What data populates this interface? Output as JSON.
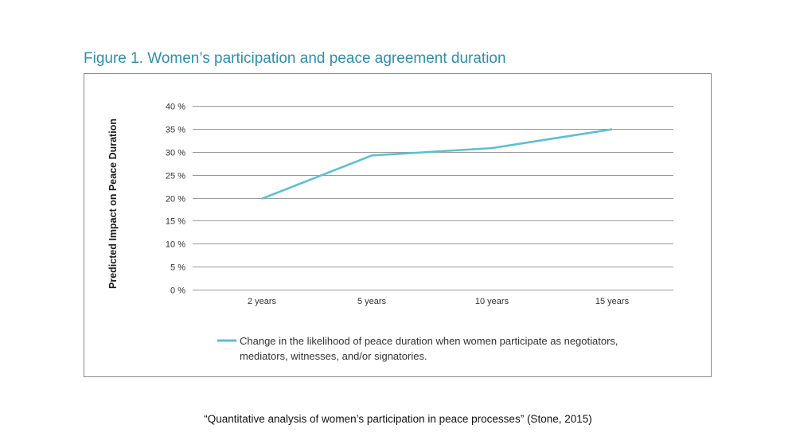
{
  "figure_title": "Figure 1. Women’s participation and peace agreement duration",
  "caption": "“Quantitative analysis of women’s participation in peace processes” (Stone, 2015)",
  "colors": {
    "line": "#5bbfd0",
    "title": "#2e8fae",
    "grid": "#9a9a9a",
    "frame": "#8a8a8a"
  },
  "chart_data": {
    "type": "line",
    "title": "",
    "ylabel": "Predicted Impact on Peace  Duration",
    "xlabel": "",
    "categories": [
      "2 years",
      "5 years",
      "10 years",
      "15 years"
    ],
    "y_ticks": [
      "0 %",
      "5 %",
      "10 %",
      "15 %",
      "20 %",
      "25 %",
      "30 %",
      "35 %",
      "40 %"
    ],
    "ylim": [
      0,
      40
    ],
    "grid": true,
    "legend_position": "bottom",
    "series": [
      {
        "name": "Change in the likelihood of peace duration when women participate as negotiators, mediators, witnesses, and/or signatories.",
        "legend_lines": [
          "Change in the likelihood of peace duration when women participate as negotiators,",
          "mediators, witnesses, and/or signatories."
        ],
        "x": [
          "2 years",
          "5 years",
          "10 years",
          "15 years"
        ],
        "values": [
          19.8,
          29.2,
          30.8,
          34.9
        ]
      }
    ]
  }
}
